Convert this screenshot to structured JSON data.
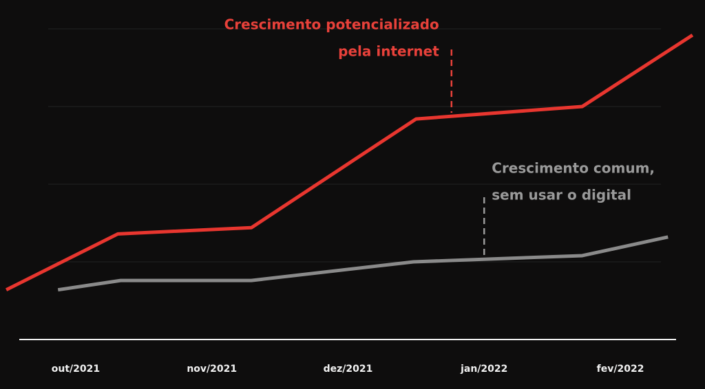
{
  "chart_data": {
    "type": "line",
    "xlim": [
      -0.55,
      4.6
    ],
    "xticks": [
      {
        "value": 0,
        "label": "out/2021"
      },
      {
        "value": 1,
        "label": "nov/2021"
      },
      {
        "value": 2,
        "label": "dez/2021"
      },
      {
        "value": 3,
        "label": "jan/2022"
      },
      {
        "value": 4,
        "label": "fev/2022"
      }
    ],
    "ylim": [
      0,
      100
    ],
    "series": [
      {
        "color": "#e8362f",
        "x": [
          -0.51,
          0.31,
          1.29,
          2.5,
          3.72,
          4.53
        ],
        "values": [
          16,
          34,
          36,
          71,
          75,
          98
        ]
      },
      {
        "color": "#8a8a8a",
        "x": [
          -0.13,
          0.33,
          1.29,
          2.48,
          3.72,
          4.35
        ],
        "values": [
          16,
          19,
          19,
          25,
          27,
          33
        ]
      }
    ],
    "annotations": [
      {
        "lines": [
          "Crescimento potencializado",
          "pela internet"
        ],
        "color": "#e8413a",
        "x": 2.76,
        "y": 73
      },
      {
        "lines": [
          "Crescimento comum,",
          "sem usar o digital"
        ],
        "color": "#9a9a9a",
        "x": 3.0,
        "y": 26
      }
    ]
  }
}
